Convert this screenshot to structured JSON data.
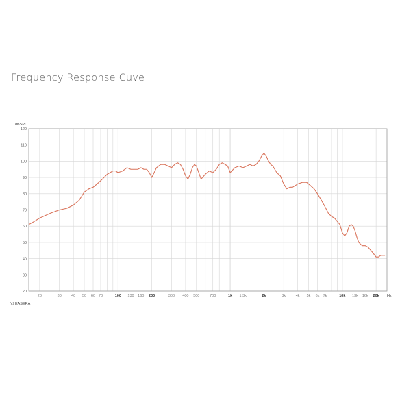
{
  "page_title": "Frequency Response Cuve",
  "chart_data": {
    "type": "line",
    "title": "Frequency Response Cuve",
    "ylabel": "dBSPL",
    "xlabel": "Hz",
    "watermark": "(c) EASERA",
    "x_scale": "log",
    "xlim": [
      16,
      25000
    ],
    "ylim": [
      20,
      120
    ],
    "grid": true,
    "y_ticks": [
      20,
      30,
      40,
      50,
      60,
      70,
      80,
      90,
      100,
      110,
      120
    ],
    "x_ticks": [
      {
        "value": 20,
        "label": "20",
        "major": false
      },
      {
        "value": 30,
        "label": "30",
        "major": false
      },
      {
        "value": 40,
        "label": "40",
        "major": false
      },
      {
        "value": 50,
        "label": "50",
        "major": false
      },
      {
        "value": 60,
        "label": "60",
        "major": false
      },
      {
        "value": 70,
        "label": "70",
        "major": false
      },
      {
        "value": 100,
        "label": "100",
        "major": true
      },
      {
        "value": 130,
        "label": "130",
        "major": false
      },
      {
        "value": 160,
        "label": "160",
        "major": false
      },
      {
        "value": 200,
        "label": "200",
        "major": true
      },
      {
        "value": 300,
        "label": "300",
        "major": false
      },
      {
        "value": 400,
        "label": "400",
        "major": false
      },
      {
        "value": 500,
        "label": "500",
        "major": false
      },
      {
        "value": 700,
        "label": "700",
        "major": false
      },
      {
        "value": 1000,
        "label": "1k",
        "major": true
      },
      {
        "value": 1300,
        "label": "1.3k",
        "major": false
      },
      {
        "value": 2000,
        "label": "2k",
        "major": true
      },
      {
        "value": 3000,
        "label": "3k",
        "major": false
      },
      {
        "value": 4000,
        "label": "4k",
        "major": false
      },
      {
        "value": 5000,
        "label": "5k",
        "major": false
      },
      {
        "value": 6000,
        "label": "6k",
        "major": false
      },
      {
        "value": 7000,
        "label": "7k",
        "major": false
      },
      {
        "value": 10000,
        "label": "10k",
        "major": true
      },
      {
        "value": 13000,
        "label": "13k",
        "major": false
      },
      {
        "value": 16000,
        "label": "16k",
        "major": false
      },
      {
        "value": 20000,
        "label": "20k",
        "major": true
      }
    ],
    "colors": {
      "line": "#d9735a",
      "grid": "#d6d6d6",
      "frame": "#9a9a9a"
    },
    "series": [
      {
        "x": [
          16,
          18,
          20,
          25,
          30,
          35,
          40,
          45,
          50,
          55,
          60,
          65,
          70,
          75,
          80,
          85,
          90,
          95,
          100,
          110,
          120,
          130,
          140,
          150,
          160,
          170,
          180,
          190,
          200,
          210,
          220,
          240,
          260,
          280,
          300,
          320,
          340,
          360,
          380,
          400,
          420,
          440,
          460,
          480,
          500,
          550,
          600,
          650,
          700,
          750,
          800,
          850,
          900,
          950,
          1000,
          1100,
          1200,
          1300,
          1400,
          1500,
          1600,
          1700,
          1800,
          1900,
          2000,
          2100,
          2200,
          2300,
          2400,
          2600,
          2800,
          3000,
          3200,
          3400,
          3600,
          3800,
          4000,
          4400,
          4800,
          5200,
          5600,
          6000,
          6500,
          7000,
          7500,
          8000,
          8500,
          9000,
          9500,
          10000,
          10500,
          11000,
          11500,
          12000,
          12500,
          13000,
          13500,
          14000,
          14500,
          15000,
          16000,
          17000,
          18000,
          19000,
          20000,
          21000,
          22000,
          24000
        ],
        "y": [
          61,
          63,
          65,
          68,
          70,
          71,
          73,
          76,
          81,
          83,
          84,
          86,
          88,
          90,
          92,
          93,
          94,
          94,
          93,
          94,
          96,
          95,
          95,
          95,
          96,
          95,
          95,
          93,
          90,
          93,
          96,
          98,
          98,
          97,
          96,
          98,
          99,
          98,
          95,
          91,
          89,
          92,
          96,
          98,
          97,
          89,
          92,
          94,
          93,
          95,
          98,
          99,
          98,
          97,
          93,
          96,
          97,
          96,
          97,
          98,
          97,
          98,
          100,
          103,
          105,
          103,
          100,
          98,
          97,
          93,
          91,
          86,
          83,
          84,
          84,
          85,
          86,
          87,
          87,
          85,
          83,
          80,
          76,
          72,
          68,
          66,
          65,
          63,
          61,
          56,
          54,
          56,
          60,
          61,
          60,
          57,
          53,
          50,
          49,
          48,
          48,
          47,
          45,
          43,
          41,
          41,
          42,
          42
        ]
      }
    ]
  }
}
